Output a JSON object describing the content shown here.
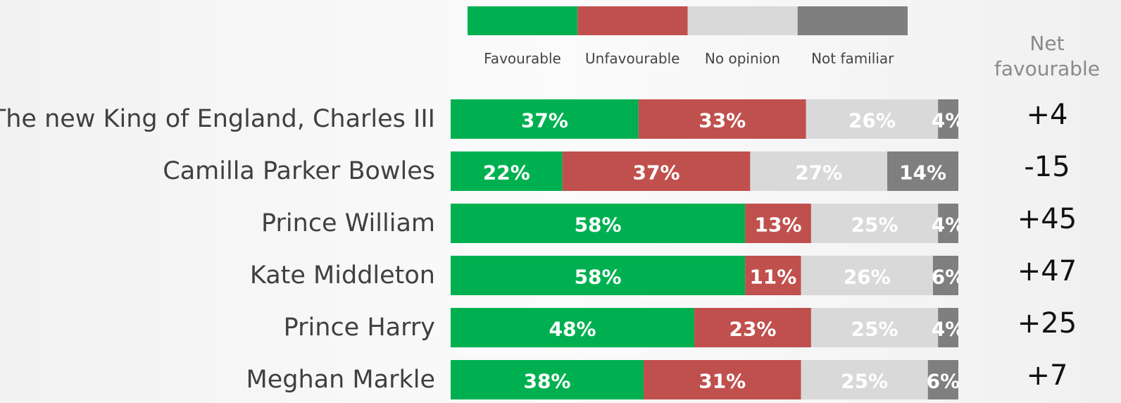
{
  "chart_data": {
    "type": "stacked-bar-horizontal",
    "categories": [
      "The new King of England, Charles III",
      "Camilla Parker Bowles",
      "Prince William",
      "Kate Middleton",
      "Prince Harry",
      "Meghan Markle"
    ],
    "series": [
      {
        "name": "Favourable",
        "color": "#00b050",
        "values": [
          37,
          22,
          58,
          58,
          48,
          38
        ],
        "value_labels": [
          "37%",
          "22%",
          "58%",
          "58%",
          "48%",
          "38%"
        ]
      },
      {
        "name": "Unfavourable",
        "color": "#c0504d",
        "values": [
          33,
          37,
          13,
          11,
          23,
          31
        ],
        "value_labels": [
          "33%",
          "37%",
          "13%",
          "11%",
          "23%",
          "31%"
        ]
      },
      {
        "name": "No opinion",
        "color": "#d9d9d9",
        "values": [
          26,
          27,
          25,
          26,
          25,
          25
        ],
        "value_labels": [
          "26%",
          "27%",
          "25%",
          "26%",
          "25%",
          "25%"
        ]
      },
      {
        "name": "Not familiar",
        "color": "#7f7f7f",
        "values": [
          4,
          14,
          4,
          6,
          4,
          6
        ],
        "value_labels": [
          "4%",
          "14%",
          "4%",
          "6%",
          "4%",
          "6%"
        ]
      }
    ],
    "xlim": [
      0,
      100
    ],
    "legend": "top",
    "net_favourable": {
      "title": "Net favourable",
      "values": [
        "+4",
        "-15",
        "+45",
        "+47",
        "+25",
        "+7"
      ]
    }
  }
}
